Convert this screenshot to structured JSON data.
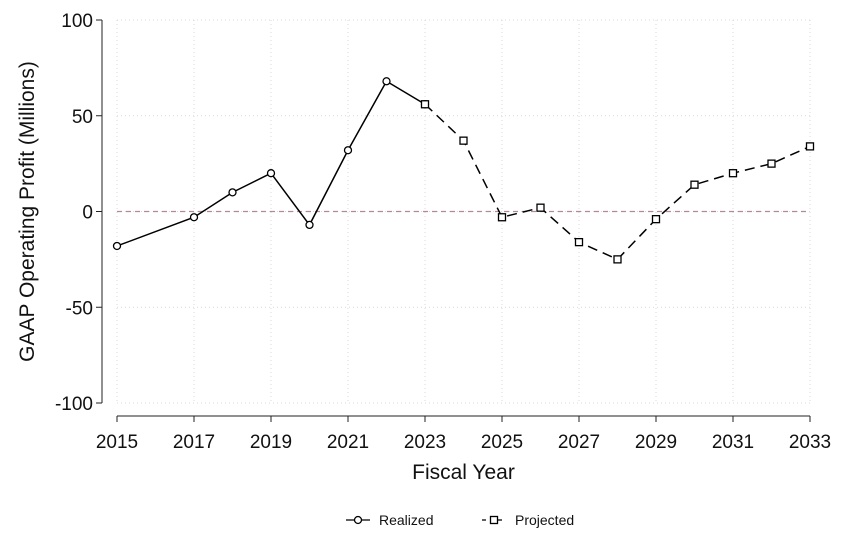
{
  "chart_data": {
    "type": "line",
    "title": "",
    "xlabel": "Fiscal Year",
    "ylabel": "GAAP Operating Profit (Millions)",
    "xlim": [
      2015,
      2033
    ],
    "ylim": [
      -100,
      100
    ],
    "x_ticks": [
      2015,
      2017,
      2019,
      2021,
      2023,
      2025,
      2027,
      2029,
      2031,
      2033
    ],
    "x_tick_labels": [
      "2015",
      "2017",
      "2019",
      "2021",
      "2023",
      "2025",
      "2027",
      "2029",
      "2031",
      "2033"
    ],
    "y_ticks": [
      -100,
      -50,
      0,
      50,
      100
    ],
    "y_tick_labels": [
      "-100",
      "-50",
      "0",
      "50",
      "100"
    ],
    "grid": true,
    "reference_line": {
      "y": 0,
      "color": "#b08a9a"
    },
    "legend_position": "bottom-center",
    "series": [
      {
        "name": "Realized",
        "marker": "circle",
        "line_style": "solid",
        "color": "#000000",
        "x": [
          2015,
          2017,
          2018,
          2019,
          2020,
          2021,
          2022,
          2023
        ],
        "y": [
          -18,
          -3,
          10,
          20,
          -7,
          32,
          68,
          56
        ]
      },
      {
        "name": "Projected",
        "marker": "square",
        "line_style": "dashed",
        "color": "#000000",
        "x": [
          2023,
          2024,
          2025,
          2026,
          2027,
          2028,
          2029,
          2030,
          2031,
          2032,
          2033
        ],
        "y": [
          56,
          37,
          -3,
          2,
          -16,
          -25,
          -4,
          14,
          20,
          25,
          34
        ]
      }
    ]
  }
}
